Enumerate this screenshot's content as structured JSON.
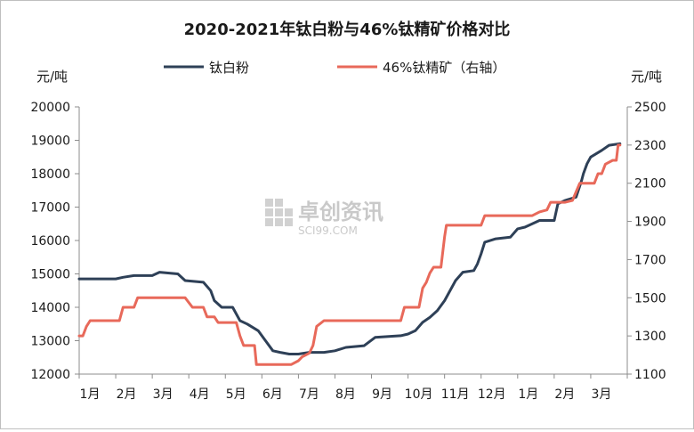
{
  "chart_data": {
    "type": "line",
    "title": "2020-2021年钛白粉与46%钛精矿价格对比",
    "y_left_unit": "元/吨",
    "y_right_unit": "元/吨",
    "x_tick_labels": [
      "1月",
      "2月",
      "3月",
      "4月",
      "5月",
      "6月",
      "7月",
      "8月",
      "9月",
      "10月",
      "11月",
      "12月",
      "1月",
      "2月",
      "3月"
    ],
    "y_left_ticks": [
      "20000",
      "19000",
      "18000",
      "17000",
      "16000",
      "15000",
      "14000",
      "13000",
      "12000"
    ],
    "y_right_ticks": [
      "2500",
      "2300",
      "2100",
      "1900",
      "1700",
      "1500",
      "1300",
      "1100"
    ],
    "ylim_left": [
      12000,
      20000
    ],
    "ylim_right": [
      1100,
      2500
    ],
    "legend_position": "top",
    "grid": false,
    "watermark_text": "卓创资讯",
    "watermark_sub": "SCI99.COM",
    "series": [
      {
        "name": "钛白粉",
        "axis": "left",
        "color": "#2e4057",
        "points": [
          [
            0.0,
            14850
          ],
          [
            1.0,
            14850
          ],
          [
            1.2,
            14900
          ],
          [
            1.5,
            14950
          ],
          [
            2.0,
            14950
          ],
          [
            2.2,
            15050
          ],
          [
            2.7,
            15000
          ],
          [
            2.9,
            14800
          ],
          [
            3.4,
            14750
          ],
          [
            3.6,
            14500
          ],
          [
            3.7,
            14200
          ],
          [
            3.9,
            14000
          ],
          [
            4.2,
            14000
          ],
          [
            4.3,
            13800
          ],
          [
            4.4,
            13600
          ],
          [
            4.6,
            13500
          ],
          [
            4.9,
            13300
          ],
          [
            5.1,
            13000
          ],
          [
            5.3,
            12700
          ],
          [
            5.5,
            12650
          ],
          [
            5.75,
            12600
          ],
          [
            6.0,
            12600
          ],
          [
            6.3,
            12650
          ],
          [
            6.7,
            12650
          ],
          [
            7.0,
            12700
          ],
          [
            7.3,
            12800
          ],
          [
            7.8,
            12850
          ],
          [
            8.1,
            13100
          ],
          [
            8.8,
            13150
          ],
          [
            9.0,
            13200
          ],
          [
            9.2,
            13300
          ],
          [
            9.4,
            13550
          ],
          [
            9.6,
            13700
          ],
          [
            9.8,
            13900
          ],
          [
            10.0,
            14200
          ],
          [
            10.1,
            14400
          ],
          [
            10.3,
            14800
          ],
          [
            10.5,
            15050
          ],
          [
            10.8,
            15100
          ],
          [
            10.9,
            15300
          ],
          [
            11.0,
            15600
          ],
          [
            11.1,
            15950
          ],
          [
            11.4,
            16050
          ],
          [
            11.8,
            16100
          ],
          [
            12.0,
            16350
          ],
          [
            12.2,
            16400
          ],
          [
            12.4,
            16500
          ],
          [
            12.6,
            16600
          ],
          [
            13.0,
            16600
          ],
          [
            13.1,
            17100
          ],
          [
            13.3,
            17200
          ],
          [
            13.6,
            17300
          ],
          [
            13.75,
            17800
          ],
          [
            13.8,
            18000
          ],
          [
            13.9,
            18300
          ],
          [
            14.0,
            18500
          ],
          [
            14.3,
            18700
          ],
          [
            14.5,
            18850
          ],
          [
            14.8,
            18900
          ]
        ]
      },
      {
        "name": "46%钛精矿（右轴）",
        "axis": "right",
        "color": "#e8695a",
        "points": [
          [
            0.0,
            1300
          ],
          [
            0.1,
            1300
          ],
          [
            0.2,
            1350
          ],
          [
            0.3,
            1380
          ],
          [
            1.1,
            1380
          ],
          [
            1.2,
            1450
          ],
          [
            1.5,
            1450
          ],
          [
            1.6,
            1500
          ],
          [
            2.9,
            1500
          ],
          [
            3.1,
            1450
          ],
          [
            3.4,
            1450
          ],
          [
            3.5,
            1400
          ],
          [
            3.7,
            1400
          ],
          [
            3.8,
            1370
          ],
          [
            4.3,
            1370
          ],
          [
            4.4,
            1300
          ],
          [
            4.5,
            1250
          ],
          [
            4.8,
            1250
          ],
          [
            4.85,
            1150
          ],
          [
            5.8,
            1150
          ],
          [
            6.0,
            1170
          ],
          [
            6.1,
            1190
          ],
          [
            6.3,
            1210
          ],
          [
            6.4,
            1250
          ],
          [
            6.5,
            1350
          ],
          [
            6.7,
            1380
          ],
          [
            8.8,
            1380
          ],
          [
            8.9,
            1450
          ],
          [
            9.3,
            1450
          ],
          [
            9.4,
            1550
          ],
          [
            9.5,
            1580
          ],
          [
            9.6,
            1630
          ],
          [
            9.7,
            1660
          ],
          [
            9.9,
            1660
          ],
          [
            10.0,
            1820
          ],
          [
            10.05,
            1880
          ],
          [
            11.0,
            1880
          ],
          [
            11.1,
            1930
          ],
          [
            12.4,
            1930
          ],
          [
            12.6,
            1950
          ],
          [
            12.8,
            1960
          ],
          [
            12.9,
            2000
          ],
          [
            13.3,
            2000
          ],
          [
            13.5,
            2010
          ],
          [
            13.7,
            2100
          ],
          [
            14.1,
            2100
          ],
          [
            14.2,
            2150
          ],
          [
            14.3,
            2150
          ],
          [
            14.4,
            2200
          ],
          [
            14.6,
            2220
          ],
          [
            14.7,
            2220
          ],
          [
            14.75,
            2300
          ],
          [
            14.8,
            2300
          ]
        ]
      }
    ]
  }
}
